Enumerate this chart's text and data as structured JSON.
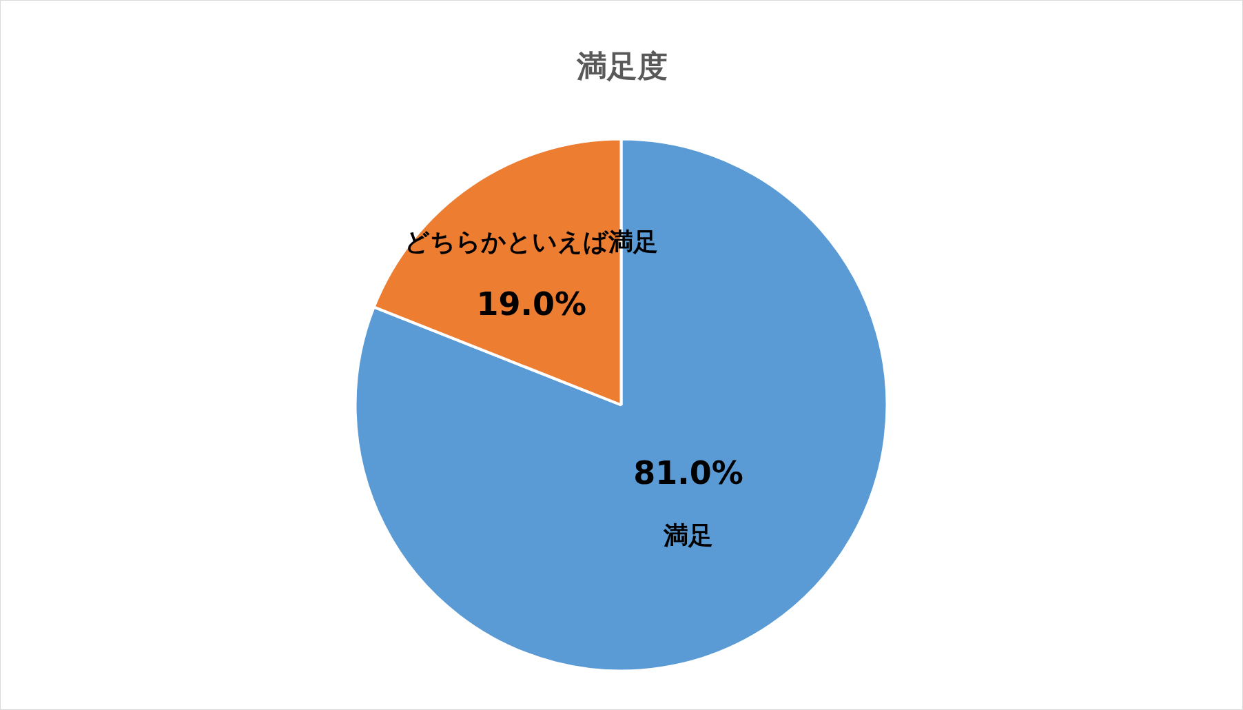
{
  "chart_data": {
    "type": "pie",
    "title": "満足度",
    "categories": [
      "満足",
      "どちらかといえば満足"
    ],
    "values": [
      81.0,
      19.0
    ],
    "colors": [
      "#5b9bd5",
      "#ed7d31"
    ],
    "value_labels": [
      "81.0%",
      "19.0%"
    ]
  }
}
